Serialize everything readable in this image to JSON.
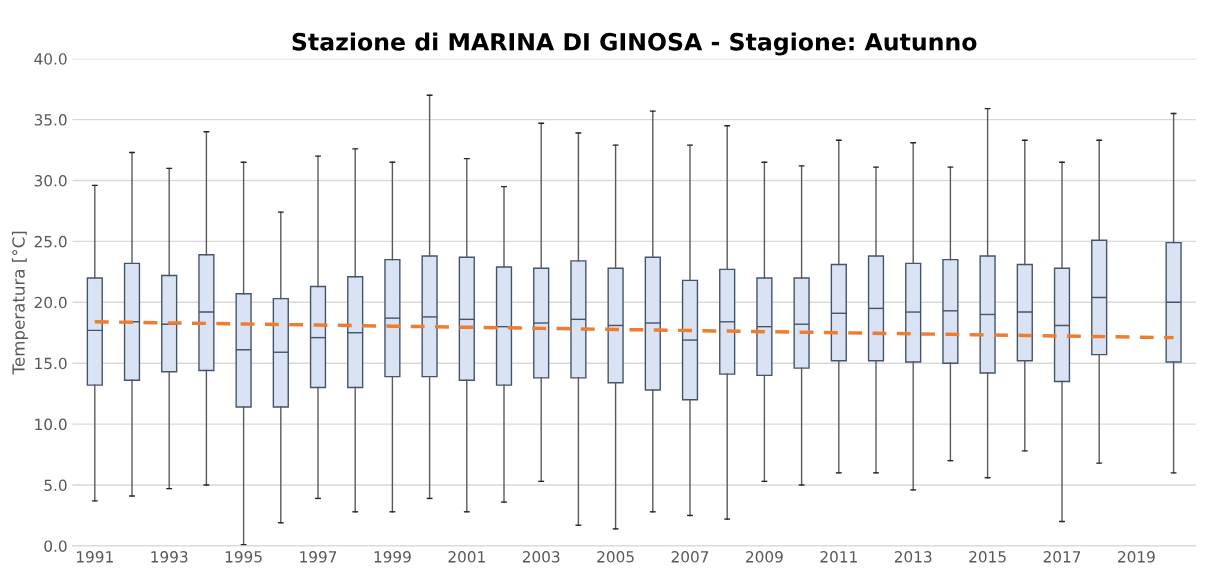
{
  "chart_data": {
    "type": "box",
    "title": "Stazione di MARINA DI GINOSA - Stagione: Autunno",
    "ylabel": "Temperatura [°C]",
    "categories": [
      "1991",
      null,
      "1993",
      null,
      "1995",
      null,
      "1997",
      null,
      "1999",
      null,
      "2001",
      null,
      "2003",
      null,
      "2005",
      null,
      "2007",
      null,
      "2009",
      null,
      "2011",
      null,
      "2013",
      null,
      "2015",
      null,
      "2017",
      null,
      "2019",
      null
    ],
    "color": "#dae3f3",
    "boxes": [
      {
        "low": 3.7,
        "q1": 13.2,
        "median": 17.7,
        "q3": 22.0,
        "high": 29.6
      },
      {
        "low": 4.1,
        "q1": 13.6,
        "median": 18.4,
        "q3": 23.2,
        "high": 32.3
      },
      {
        "low": 4.7,
        "q1": 14.3,
        "median": 18.2,
        "q3": 22.2,
        "high": 31.0
      },
      {
        "low": 5.0,
        "q1": 14.4,
        "median": 19.2,
        "q3": 23.9,
        "high": 34.0
      },
      {
        "low": 0.1,
        "q1": 11.4,
        "median": 16.1,
        "q3": 20.7,
        "high": 31.5
      },
      {
        "low": 1.9,
        "q1": 11.4,
        "median": 15.9,
        "q3": 20.3,
        "high": 27.4
      },
      {
        "low": 3.9,
        "q1": 13.0,
        "median": 17.1,
        "q3": 21.3,
        "high": 32.0
      },
      {
        "low": 2.8,
        "q1": 13.0,
        "median": 17.5,
        "q3": 22.1,
        "high": 32.6
      },
      {
        "low": 2.8,
        "q1": 13.9,
        "median": 18.7,
        "q3": 23.5,
        "high": 31.5
      },
      {
        "low": 3.9,
        "q1": 13.9,
        "median": 18.8,
        "q3": 23.8,
        "high": 37.0
      },
      {
        "low": 2.8,
        "q1": 13.6,
        "median": 18.6,
        "q3": 23.7,
        "high": 31.8
      },
      {
        "low": 3.6,
        "q1": 13.2,
        "median": 18.0,
        "q3": 22.9,
        "high": 29.5
      },
      {
        "low": 5.3,
        "q1": 13.8,
        "median": 18.3,
        "q3": 22.8,
        "high": 34.7
      },
      {
        "low": 1.7,
        "q1": 13.8,
        "median": 18.6,
        "q3": 23.4,
        "high": 33.9
      },
      {
        "low": 1.4,
        "q1": 13.4,
        "median": 18.1,
        "q3": 22.8,
        "high": 32.9
      },
      {
        "low": 2.8,
        "q1": 12.8,
        "median": 18.3,
        "q3": 23.7,
        "high": 35.7
      },
      {
        "low": 2.5,
        "q1": 12.0,
        "median": 16.9,
        "q3": 21.8,
        "high": 32.9
      },
      {
        "low": 2.2,
        "q1": 14.1,
        "median": 18.4,
        "q3": 22.7,
        "high": 34.5
      },
      {
        "low": 5.3,
        "q1": 14.0,
        "median": 18.0,
        "q3": 22.0,
        "high": 31.5
      },
      {
        "low": 5.0,
        "q1": 14.6,
        "median": 18.2,
        "q3": 22.0,
        "high": 31.2
      },
      {
        "low": 6.0,
        "q1": 15.2,
        "median": 19.1,
        "q3": 23.1,
        "high": 33.3
      },
      {
        "low": 6.0,
        "q1": 15.2,
        "median": 19.5,
        "q3": 23.8,
        "high": 31.1
      },
      {
        "low": 4.6,
        "q1": 15.1,
        "median": 19.2,
        "q3": 23.2,
        "high": 33.1
      },
      {
        "low": 7.0,
        "q1": 15.0,
        "median": 19.3,
        "q3": 23.5,
        "high": 31.1
      },
      {
        "low": 5.6,
        "q1": 14.2,
        "median": 19.0,
        "q3": 23.8,
        "high": 35.9
      },
      {
        "low": 7.8,
        "q1": 15.2,
        "median": 19.2,
        "q3": 23.1,
        "high": 33.3
      },
      {
        "low": 2.0,
        "q1": 13.5,
        "median": 18.1,
        "q3": 22.8,
        "high": 31.5
      },
      {
        "low": 6.8,
        "q1": 15.7,
        "median": 20.4,
        "q3": 25.1,
        "high": 33.3
      },
      null,
      {
        "low": 6.0,
        "q1": 15.1,
        "median": 20.0,
        "q3": 24.9,
        "high": 35.5
      }
    ],
    "series": [
      {
        "type": "line",
        "color": "#ed7d31",
        "line_style": "dashed",
        "values": [
          18.4,
          18.36,
          18.31,
          18.27,
          18.22,
          18.18,
          18.13,
          18.09,
          18.04,
          18.0,
          17.95,
          17.91,
          17.86,
          17.82,
          17.77,
          17.73,
          17.68,
          17.64,
          17.59,
          17.55,
          17.5,
          17.46,
          17.41,
          17.37,
          17.32,
          17.28,
          17.23,
          17.19,
          17.14,
          17.1
        ]
      }
    ],
    "ylim": [
      0,
      40
    ],
    "yticks": [
      {
        "value": 0,
        "label": "0.0"
      },
      {
        "value": 5,
        "label": "5.0"
      },
      {
        "value": 10,
        "label": "10.0"
      },
      {
        "value": 15,
        "label": "15.0"
      },
      {
        "value": 20,
        "label": "20.0"
      },
      {
        "value": 25,
        "label": "25.0"
      },
      {
        "value": 30,
        "label": "30.0"
      },
      {
        "value": 35,
        "label": "35.0"
      },
      {
        "value": 40,
        "label": "40.0"
      }
    ],
    "grid": "y"
  }
}
